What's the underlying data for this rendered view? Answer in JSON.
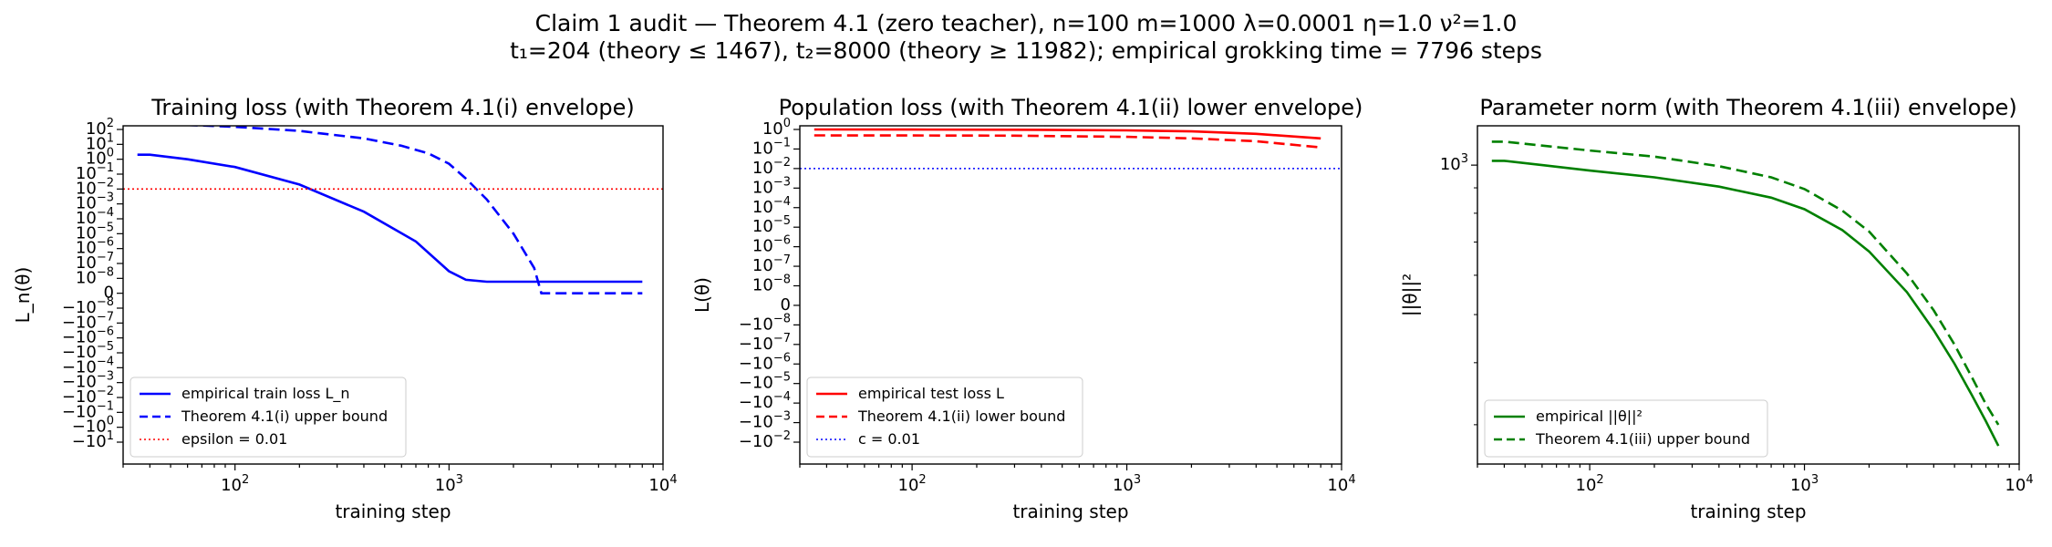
{
  "figure": {
    "title_line1": "Claim 1 audit — Theorem 4.1 (zero teacher), n=100 m=1000 λ=0.0001 η=1.0 ν²=1.0",
    "title_line2": "t₁=204 (theory ≤ 1467), t₂=8000 (theory ≥ 11982); empirical grokking time = 7796 steps"
  },
  "colors": {
    "blue": "#0000ff",
    "red": "#ff0000",
    "green": "#008000"
  },
  "chart_data": [
    {
      "type": "line",
      "title": "Training loss (with Theorem 4.1(i) envelope)",
      "xlabel": "training step",
      "ylabel": "L_n(θ)",
      "xscale": "log",
      "yscale": "symlog",
      "xlim": [
        30,
        10000
      ],
      "xticks": [
        "10^2",
        "10^3",
        "10^4"
      ],
      "yticks": [
        "10^2",
        "10^1",
        "10^0",
        "10^-1",
        "10^-2",
        "10^-3",
        "10^-4",
        "10^-5",
        "10^-6",
        "10^-7",
        "10^-8",
        "0",
        "-10^-8",
        "-10^-7",
        "-10^-6",
        "-10^-5",
        "-10^-4",
        "-10^-3",
        "-10^-2",
        "-10^-1",
        "-10^0",
        "-10^1"
      ],
      "legend_position": "lower-left",
      "grid": false,
      "series": [
        {
          "name": "empirical train loss L_n",
          "color": "#0000ff",
          "style": "solid",
          "x": [
            35,
            40,
            60,
            100,
            200,
            400,
            700,
            1000,
            1200,
            1500,
            2000,
            3000,
            5000,
            8000
          ],
          "y": [
            2,
            2,
            1,
            0.3,
            0.02,
            0.0003,
            3e-06,
            3e-08,
            8e-09,
            6e-09,
            6e-09,
            6e-09,
            6e-09,
            6e-09
          ]
        },
        {
          "name": "Theorem 4.1(i) upper bound",
          "color": "#0000ff",
          "style": "dashed",
          "x": [
            35,
            50,
            100,
            200,
            400,
            600,
            800,
            1000,
            1200,
            1500,
            2000,
            2500,
            2700,
            2900,
            3200,
            4000,
            8000
          ],
          "y": [
            250,
            220,
            150,
            80,
            25,
            8,
            2.5,
            0.5,
            0.05,
            0.002,
            1e-05,
            5e-08,
            0,
            0,
            0,
            0,
            0
          ]
        },
        {
          "name": "epsilon = 0.01",
          "color": "#ff0000",
          "style": "dotted",
          "hline": 0.01
        }
      ]
    },
    {
      "type": "line",
      "title": "Population loss (with Theorem 4.1(ii) lower envelope)",
      "xlabel": "training step",
      "ylabel": "L(θ)",
      "xscale": "log",
      "yscale": "symlog",
      "xlim": [
        30,
        10000
      ],
      "xticks": [
        "10^2",
        "10^3",
        "10^4"
      ],
      "yticks": [
        "10^0",
        "10^-1",
        "10^-2",
        "10^-3",
        "10^-4",
        "10^-5",
        "10^-6",
        "10^-7",
        "10^-8",
        "0",
        "-10^-8",
        "-10^-7",
        "-10^-6",
        "-10^-5",
        "-10^-4",
        "-10^-3",
        "-10^-2"
      ],
      "legend_position": "lower-left",
      "grid": false,
      "series": [
        {
          "name": "empirical test loss L",
          "color": "#ff0000",
          "style": "solid",
          "x": [
            35,
            100,
            300,
            1000,
            2000,
            4000,
            8000
          ],
          "y": [
            1.0,
            0.99,
            0.97,
            0.9,
            0.8,
            0.6,
            0.35
          ]
        },
        {
          "name": "Theorem 4.1(ii) lower bound",
          "color": "#ff0000",
          "style": "dashed",
          "x": [
            35,
            100,
            300,
            1000,
            2000,
            4000,
            8000
          ],
          "y": [
            0.5,
            0.49,
            0.48,
            0.42,
            0.35,
            0.25,
            0.12
          ]
        },
        {
          "name": "c = 0.01",
          "color": "#0000ff",
          "style": "dotted",
          "hline": 0.01
        }
      ]
    },
    {
      "type": "line",
      "title": "Parameter norm (with Theorem 4.1(iii) envelope)",
      "xlabel": "training step",
      "ylabel": "||θ||²",
      "xscale": "log",
      "yscale": "log",
      "xlim": [
        30,
        10000
      ],
      "ylim": [
        250,
        1200
      ],
      "xticks": [
        "10^2",
        "10^3",
        "10^4"
      ],
      "yticks": [
        "10^3"
      ],
      "legend_position": "lower-left",
      "grid": false,
      "series": [
        {
          "name": "empirical ||θ||²",
          "color": "#008000",
          "style": "solid",
          "x": [
            35,
            40,
            60,
            100,
            200,
            400,
            700,
            1000,
            1500,
            2000,
            3000,
            4000,
            5000,
            6000,
            7000,
            8000
          ],
          "y": [
            1020,
            1020,
            1000,
            975,
            945,
            905,
            860,
            815,
            740,
            670,
            555,
            465,
            398,
            345,
            305,
            272
          ]
        },
        {
          "name": "Theorem 4.1(iii) upper bound",
          "color": "#008000",
          "style": "dashed",
          "x": [
            35,
            40,
            60,
            100,
            200,
            400,
            700,
            1000,
            1500,
            2000,
            3000,
            4000,
            5000,
            6000,
            7000,
            8000
          ],
          "y": [
            1115,
            1115,
            1095,
            1070,
            1040,
            995,
            945,
            895,
            810,
            735,
            605,
            510,
            435,
            375,
            330,
            300
          ]
        }
      ]
    }
  ]
}
